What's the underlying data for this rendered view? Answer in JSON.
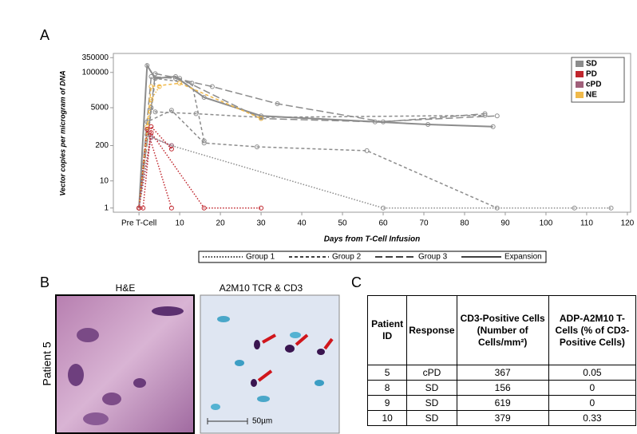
{
  "chart_data": {
    "type": "line",
    "panel_label": "A",
    "xlabel": "Days from T-Cell Infusion",
    "ylabel": "Vector copies per microgram of DNA",
    "xlim": [
      -6.3,
      120.8
    ],
    "xticks": [
      {
        "value": 0,
        "label": "Pre T-Cell"
      },
      10,
      20,
      30,
      40,
      50,
      60,
      70,
      80,
      90,
      100,
      110,
      120
    ],
    "ylim": [
      0.7,
      500000
    ],
    "log_y": true,
    "yticks": [
      1,
      10,
      200,
      5000,
      100000,
      350000
    ],
    "color_legend": [
      {
        "label": "SD",
        "color": "#8c8c8c"
      },
      {
        "label": "PD",
        "color": "#c0262d"
      },
      {
        "label": "cPD",
        "color": "#a0607a"
      },
      {
        "label": "NE",
        "color": "#f0b94a"
      }
    ],
    "style_legend": [
      {
        "label": "Group 1",
        "dash": "dotted"
      },
      {
        "label": "Group 2",
        "dash": "dashed"
      },
      {
        "label": "Group 3",
        "dash": "longdash"
      },
      {
        "label": "Expansion",
        "dash": "solid"
      }
    ],
    "series": [
      {
        "color": "#8c8c8c",
        "dash": "solid",
        "x": [
          0,
          2,
          4,
          9,
          16,
          30,
          71,
          87
        ],
        "values": [
          1,
          180000,
          60000,
          70000,
          12000,
          2500,
          1200,
          1000
        ]
      },
      {
        "color": "#8c8c8c",
        "dash": "longdash",
        "x": [
          0,
          3,
          9,
          18,
          34,
          60,
          85
        ],
        "values": [
          1,
          70000,
          60000,
          30000,
          7000,
          1500,
          3000
        ]
      },
      {
        "color": "#8c8c8c",
        "dash": "longdash",
        "x": [
          0,
          4,
          10,
          30,
          58,
          88
        ],
        "values": [
          1,
          90000,
          60000,
          2000,
          1500,
          2500
        ]
      },
      {
        "color": "#8c8c8c",
        "dash": "dashed",
        "x": [
          0,
          3,
          4,
          14,
          30,
          85
        ],
        "values": [
          1,
          5000,
          3500,
          3000,
          2200,
          2600
        ]
      },
      {
        "color": "#8c8c8c",
        "dash": "dashed",
        "x": [
          0,
          2,
          8,
          16,
          29,
          56,
          88
        ],
        "values": [
          1,
          1500,
          4000,
          250,
          180,
          130,
          1
        ]
      },
      {
        "color": "#8c8c8c",
        "dash": "dashed",
        "x": [
          0,
          4,
          13,
          16
        ],
        "values": [
          1,
          60000,
          40000,
          300
        ]
      },
      {
        "color": "#8c8c8c",
        "dash": "dotted",
        "x": [
          0,
          2,
          8,
          60,
          107,
          116
        ],
        "values": [
          1,
          500,
          200,
          1,
          1,
          1
        ]
      },
      {
        "color": "#f0b94a",
        "dash": "dashed",
        "x": [
          0,
          2,
          3,
          10,
          30
        ],
        "values": [
          1,
          1000,
          30000,
          40000,
          2000
        ]
      },
      {
        "color": "#f0b94a",
        "dash": "dotted",
        "x": [
          0,
          3,
          5
        ],
        "values": [
          1,
          10000,
          30000
        ]
      },
      {
        "color": "#c0262d",
        "dash": "dotted",
        "x": [
          0,
          2,
          8
        ],
        "values": [
          1,
          800,
          1
        ]
      },
      {
        "color": "#c0262d",
        "dash": "dotted",
        "x": [
          0,
          3,
          16,
          30
        ],
        "values": [
          1,
          600,
          1,
          1
        ]
      },
      {
        "color": "#a0607a",
        "dash": "dotted",
        "x": [
          0,
          3,
          8
        ],
        "values": [
          1,
          400,
          200
        ]
      },
      {
        "color": "#c0262d",
        "dash": "dotted",
        "x": [
          0,
          1,
          3,
          8
        ],
        "values": [
          1,
          1,
          1000,
          150
        ]
      }
    ]
  },
  "panel_b": {
    "panel_label": "B",
    "left_title": "H&E",
    "right_title": "A2M10 TCR & CD3",
    "row_label": "Patient 5",
    "scale_bar": "50µm"
  },
  "panel_c": {
    "panel_label": "C",
    "table": {
      "header": [
        "Patient ID",
        "Response",
        "CD3-Positive Cells (Number of Cells/mm²)",
        "ADP-A2M10 T-Cells (% of CD3-Positive Cells)"
      ],
      "rows": [
        [
          "5",
          "cPD",
          "367",
          "0.05"
        ],
        [
          "8",
          "SD",
          "156",
          "0"
        ],
        [
          "9",
          "SD",
          "619",
          "0"
        ],
        [
          "10",
          "SD",
          "379",
          "0.33"
        ]
      ]
    }
  }
}
